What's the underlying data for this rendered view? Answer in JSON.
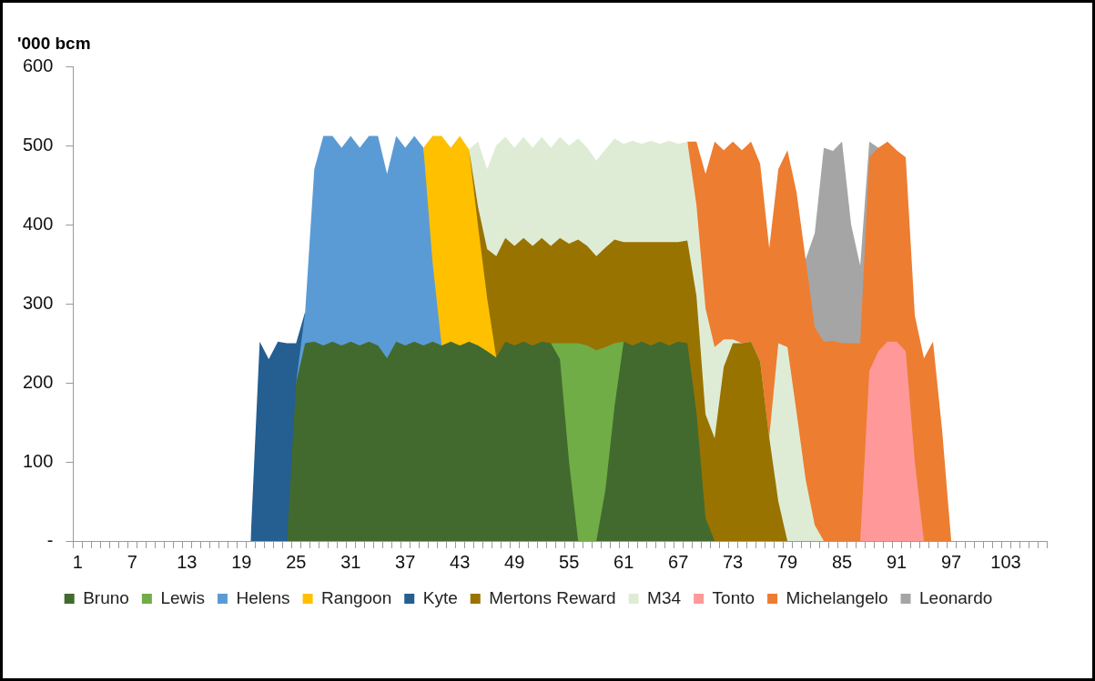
{
  "chart_data": {
    "type": "area",
    "ylabel": "'000 bcm",
    "stacked": true,
    "grid": false,
    "legend": "bottom",
    "categories": [
      "1",
      null,
      null,
      null,
      null,
      null,
      "7",
      null,
      null,
      null,
      null,
      null,
      "13",
      null,
      null,
      null,
      null,
      null,
      "19",
      null,
      null,
      null,
      null,
      null,
      "25",
      null,
      null,
      null,
      null,
      null,
      "31",
      null,
      null,
      null,
      null,
      null,
      "37",
      null,
      null,
      null,
      null,
      null,
      "43",
      null,
      null,
      null,
      null,
      null,
      "49",
      null,
      null,
      null,
      null,
      null,
      "55",
      null,
      null,
      null,
      null,
      null,
      "61",
      null,
      null,
      null,
      null,
      null,
      "67",
      null,
      null,
      null,
      null,
      null,
      "73",
      null,
      null,
      null,
      null,
      null,
      "79",
      null,
      null,
      null,
      null,
      null,
      "85",
      null,
      null,
      null,
      null,
      null,
      "91",
      null,
      null,
      null,
      null,
      null,
      "97",
      null,
      null,
      null,
      null,
      null,
      "103",
      null,
      null,
      null,
      null
    ],
    "ylim": [
      0,
      600
    ],
    "yticks": [
      {
        "value": 0,
        "label": "-"
      },
      100,
      200,
      300,
      400,
      500,
      600
    ],
    "series": [
      {
        "name": "Bruno",
        "color": "#426a2e",
        "values": [
          null,
          null,
          null,
          null,
          null,
          null,
          null,
          null,
          null,
          null,
          null,
          null,
          null,
          null,
          null,
          null,
          null,
          null,
          null,
          null,
          null,
          null,
          null,
          0,
          200,
          250,
          252,
          247,
          252,
          247,
          252,
          247,
          252,
          247,
          231,
          252,
          247,
          252,
          247,
          252,
          247,
          252,
          247,
          252,
          247,
          240,
          232,
          252,
          247,
          252,
          247,
          252,
          250,
          230,
          100,
          0,
          0,
          0,
          65,
          170,
          252,
          247,
          252,
          247,
          252,
          247,
          252,
          250,
          163,
          29,
          0,
          null,
          null,
          null,
          null,
          null,
          null,
          null,
          null,
          null,
          null,
          null,
          null,
          null,
          null,
          null,
          null,
          null,
          null,
          null,
          null,
          null,
          null,
          null,
          null,
          null,
          null,
          null,
          null,
          null,
          null,
          null,
          null,
          null,
          null,
          null,
          null
        ]
      },
      {
        "name": "Lewis",
        "color": "#70ad47",
        "values": [
          null,
          null,
          null,
          null,
          null,
          null,
          null,
          null,
          null,
          null,
          null,
          null,
          null,
          null,
          null,
          null,
          null,
          null,
          null,
          null,
          null,
          null,
          null,
          null,
          null,
          null,
          null,
          null,
          null,
          null,
          null,
          null,
          null,
          null,
          null,
          null,
          null,
          null,
          null,
          null,
          null,
          null,
          null,
          null,
          null,
          null,
          null,
          null,
          null,
          null,
          null,
          null,
          0,
          20,
          150,
          250,
          247,
          241,
          180,
          80,
          0,
          null,
          null,
          null,
          null,
          null,
          null,
          null,
          null,
          null,
          null,
          null,
          null,
          null,
          null,
          null,
          null,
          null,
          null,
          null,
          null,
          null,
          null,
          null,
          null,
          null,
          null,
          null,
          null,
          null,
          null,
          null,
          null,
          null,
          null,
          null,
          null,
          null,
          null,
          null,
          null,
          null,
          null,
          null,
          null,
          null,
          null
        ]
      },
      {
        "name": "Helens",
        "color": "#5b9bd5",
        "values": [
          null,
          null,
          null,
          null,
          null,
          null,
          null,
          null,
          null,
          null,
          null,
          null,
          null,
          null,
          null,
          null,
          null,
          null,
          null,
          null,
          null,
          null,
          null,
          null,
          0,
          40,
          218,
          265,
          260,
          250,
          260,
          250,
          260,
          265,
          233,
          260,
          250,
          260,
          250,
          100,
          0,
          null,
          null,
          null,
          null,
          null,
          null,
          null,
          null,
          null,
          null,
          null,
          null,
          null,
          null,
          null,
          null,
          null,
          null,
          null,
          null,
          null,
          null,
          null,
          null,
          null,
          null,
          null,
          null,
          null,
          null,
          null,
          null,
          null,
          null,
          null,
          null,
          null,
          null,
          null,
          null,
          null,
          null,
          null,
          null,
          null,
          null,
          null,
          null,
          null,
          null,
          null,
          null,
          null,
          null,
          null,
          null,
          null,
          null,
          null,
          null,
          null,
          null,
          null,
          null,
          null,
          null
        ]
      },
      {
        "name": "Rangoon",
        "color": "#ffc000",
        "values": [
          null,
          null,
          null,
          null,
          null,
          null,
          null,
          null,
          null,
          null,
          null,
          null,
          null,
          null,
          null,
          null,
          null,
          null,
          null,
          null,
          null,
          null,
          null,
          null,
          null,
          null,
          null,
          null,
          null,
          null,
          null,
          null,
          null,
          null,
          null,
          null,
          null,
          null,
          0,
          160,
          265,
          245,
          265,
          243,
          151,
          67,
          0,
          null,
          null,
          null,
          null,
          null,
          null,
          null,
          null,
          null,
          null,
          null,
          null,
          null,
          null,
          null,
          null,
          null,
          null,
          null,
          null,
          null,
          null,
          null,
          null,
          null,
          null,
          null,
          null,
          null,
          null,
          null,
          null,
          null,
          null,
          null,
          null,
          null,
          null,
          null,
          null,
          null,
          null,
          null,
          null,
          null,
          null,
          null,
          null,
          null,
          null,
          null,
          null,
          null,
          null,
          null,
          null,
          null,
          null,
          null,
          null
        ]
      },
      {
        "name": "Kyte",
        "color": "#255e91",
        "values": [
          null,
          null,
          null,
          null,
          null,
          null,
          null,
          null,
          null,
          null,
          null,
          null,
          null,
          null,
          null,
          null,
          null,
          null,
          null,
          0,
          252,
          230,
          252,
          250,
          50,
          0,
          null,
          null,
          null,
          null,
          null,
          null,
          null,
          null,
          null,
          null,
          null,
          null,
          null,
          null,
          null,
          null,
          null,
          null,
          null,
          null,
          null,
          null,
          null,
          null,
          null,
          null,
          null,
          null,
          null,
          null,
          null,
          null,
          null,
          null,
          null,
          null,
          null,
          null,
          null,
          null,
          null,
          null,
          null,
          null,
          null,
          null,
          null,
          null,
          null,
          null,
          null,
          null,
          null,
          null,
          null,
          null,
          null,
          null,
          null,
          null,
          null,
          null,
          null,
          null,
          null,
          null,
          null,
          null,
          null,
          null,
          null,
          null,
          null,
          null,
          null,
          null,
          null,
          null,
          null,
          null,
          null
        ]
      },
      {
        "name": "Mertons Reward",
        "color": "#997300",
        "values": [
          null,
          null,
          null,
          null,
          null,
          null,
          null,
          null,
          null,
          null,
          null,
          null,
          null,
          null,
          null,
          null,
          null,
          null,
          null,
          null,
          null,
          null,
          null,
          null,
          null,
          null,
          null,
          null,
          null,
          null,
          null,
          null,
          null,
          null,
          null,
          null,
          null,
          null,
          null,
          null,
          null,
          null,
          null,
          0,
          24,
          62,
          128,
          131,
          126,
          131,
          126,
          131,
          123,
          133,
          126,
          131,
          126,
          119,
          126,
          131,
          126,
          131,
          126,
          131,
          126,
          131,
          126,
          130,
          147,
          131,
          130,
          220,
          250,
          250,
          252,
          227,
          131,
          50,
          0,
          null,
          null,
          null,
          null,
          null,
          null,
          null,
          null,
          null,
          null,
          null,
          null,
          null,
          null,
          null,
          null,
          null,
          null,
          null,
          null,
          null,
          null,
          null,
          null,
          null,
          null,
          null,
          null
        ]
      },
      {
        "name": "M34",
        "color": "#dfecd5",
        "values": [
          null,
          null,
          null,
          null,
          null,
          null,
          null,
          null,
          null,
          null,
          null,
          null,
          null,
          null,
          null,
          null,
          null,
          null,
          null,
          null,
          null,
          null,
          null,
          null,
          null,
          null,
          null,
          null,
          null,
          null,
          null,
          null,
          null,
          null,
          null,
          null,
          null,
          null,
          null,
          null,
          null,
          null,
          null,
          0,
          83,
          101,
          140,
          128,
          124,
          128,
          124,
          128,
          124,
          128,
          124,
          128,
          124,
          121,
          124,
          128,
          124,
          128,
          124,
          128,
          124,
          128,
          124,
          125,
          115,
          134,
          115,
          35,
          5,
          0,
          0,
          0,
          0,
          200,
          245,
          163,
          78,
          20,
          0,
          null,
          null,
          null,
          null,
          null,
          null,
          null,
          null,
          null,
          null,
          null,
          null,
          null,
          null,
          null,
          null,
          null,
          null,
          null,
          null,
          null,
          null,
          null,
          null
        ]
      },
      {
        "name": "Tonto",
        "color": "#ff9999",
        "values": [
          null,
          null,
          null,
          null,
          null,
          null,
          null,
          null,
          null,
          null,
          null,
          null,
          null,
          null,
          null,
          null,
          null,
          null,
          null,
          null,
          null,
          null,
          null,
          null,
          null,
          null,
          null,
          null,
          null,
          null,
          null,
          null,
          null,
          null,
          null,
          null,
          null,
          null,
          null,
          null,
          null,
          null,
          null,
          null,
          null,
          null,
          null,
          null,
          null,
          null,
          null,
          null,
          null,
          null,
          null,
          null,
          null,
          null,
          null,
          null,
          null,
          null,
          null,
          null,
          null,
          null,
          null,
          null,
          null,
          null,
          null,
          null,
          null,
          null,
          null,
          null,
          null,
          null,
          null,
          null,
          null,
          null,
          null,
          null,
          null,
          null,
          0,
          215,
          240,
          252,
          252,
          240,
          100,
          0,
          null,
          null,
          null,
          null,
          null,
          null,
          null,
          null,
          null,
          null,
          null,
          null,
          null
        ]
      },
      {
        "name": "Michelangelo",
        "color": "#ed7d31",
        "values": [
          null,
          null,
          null,
          null,
          null,
          null,
          null,
          null,
          null,
          null,
          null,
          null,
          null,
          null,
          null,
          null,
          null,
          null,
          null,
          null,
          null,
          null,
          null,
          null,
          null,
          null,
          null,
          null,
          null,
          null,
          null,
          null,
          null,
          null,
          null,
          null,
          null,
          null,
          null,
          null,
          null,
          null,
          null,
          null,
          null,
          null,
          null,
          null,
          null,
          null,
          null,
          null,
          null,
          null,
          null,
          null,
          null,
          null,
          null,
          null,
          null,
          null,
          null,
          null,
          null,
          null,
          null,
          0,
          80,
          170,
          260,
          239,
          250,
          244,
          253,
          250,
          239,
          220,
          249,
          278,
          278,
          250,
          252,
          253,
          250,
          250,
          250,
          270,
          257,
          253,
          242,
          245,
          185,
          231,
          252,
          140,
          0,
          null,
          null,
          null,
          null,
          null,
          null,
          null,
          null,
          null,
          null
        ]
      },
      {
        "name": "Leonardo",
        "color": "#a5a5a5",
        "values": [
          null,
          null,
          null,
          null,
          null,
          null,
          null,
          null,
          null,
          null,
          null,
          null,
          null,
          null,
          null,
          null,
          null,
          null,
          null,
          null,
          null,
          null,
          null,
          null,
          null,
          null,
          null,
          null,
          null,
          null,
          null,
          null,
          null,
          null,
          null,
          null,
          null,
          null,
          null,
          null,
          null,
          null,
          null,
          null,
          null,
          null,
          null,
          null,
          null,
          null,
          null,
          null,
          null,
          null,
          null,
          null,
          null,
          null,
          null,
          null,
          null,
          null,
          null,
          null,
          null,
          null,
          null,
          null,
          null,
          null,
          null,
          null,
          null,
          null,
          null,
          null,
          null,
          null,
          null,
          null,
          0,
          119,
          245,
          240,
          255,
          150,
          98,
          20,
          0,
          null,
          null,
          null,
          null,
          null,
          null,
          null,
          null,
          null,
          null,
          null,
          null,
          null,
          null,
          null,
          null,
          null,
          null
        ]
      }
    ]
  }
}
